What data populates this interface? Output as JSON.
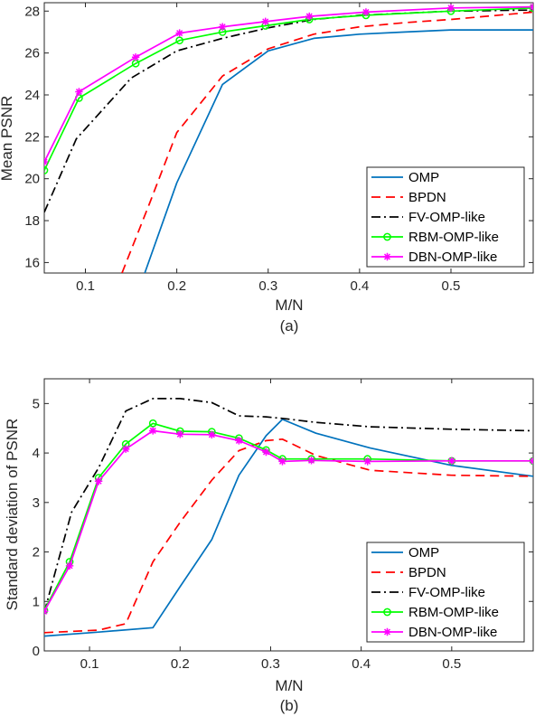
{
  "colors": {
    "OMP": "#0072BD",
    "BPDN": "#FF0000",
    "FV-OMP-like": "#000000",
    "RBM-OMP-like": "#00FF00",
    "DBN-OMP-like": "#FF00FF"
  },
  "chart_data": [
    {
      "type": "line",
      "panel_label": "(a)",
      "xlabel": "M/N",
      "ylabel": "Mean PSNR",
      "xlim": [
        0.055,
        0.59
      ],
      "ylim": [
        15.5,
        28.4
      ],
      "xticks": [
        0.1,
        0.2,
        0.3,
        0.4,
        0.5
      ],
      "xtick_labels": [
        "0.1",
        "0.2",
        "0.3",
        "0.4",
        "0.5"
      ],
      "yticks": [
        16,
        18,
        20,
        22,
        24,
        26,
        28
      ],
      "ytick_labels": [
        "16",
        "18",
        "20",
        "22",
        "24",
        "26",
        "28"
      ],
      "grid": false,
      "legend_position": "bottom-right",
      "series": [
        {
          "name": "OMP",
          "style": "solid",
          "marker": "none",
          "x": [
            0.165,
            0.2,
            0.25,
            0.3,
            0.35,
            0.4,
            0.45,
            0.5,
            0.59
          ],
          "y": [
            15.5,
            19.8,
            24.5,
            26.1,
            26.7,
            26.9,
            27.0,
            27.1,
            27.1
          ]
        },
        {
          "name": "BPDN",
          "style": "dashed",
          "marker": "none",
          "x": [
            0.14,
            0.17,
            0.2,
            0.25,
            0.3,
            0.35,
            0.4,
            0.45,
            0.5,
            0.59
          ],
          "y": [
            15.5,
            18.8,
            22.2,
            24.9,
            26.2,
            26.9,
            27.25,
            27.45,
            27.6,
            27.95
          ]
        },
        {
          "name": "FV-OMP-like",
          "style": "dashdot",
          "marker": "none",
          "x": [
            0.055,
            0.09,
            0.15,
            0.2,
            0.25,
            0.3,
            0.35,
            0.4,
            0.45,
            0.5,
            0.59
          ],
          "y": [
            18.4,
            21.9,
            24.8,
            26.1,
            26.7,
            27.2,
            27.6,
            27.8,
            27.9,
            28.0,
            28.05
          ]
        },
        {
          "name": "RBM-OMP-like",
          "style": "solid",
          "marker": "circle",
          "x": [
            0.055,
            0.093,
            0.155,
            0.203,
            0.25,
            0.297,
            0.345,
            0.407,
            0.5,
            0.59
          ],
          "y": [
            20.4,
            23.85,
            25.5,
            26.6,
            27.0,
            27.3,
            27.6,
            27.8,
            28.0,
            28.15
          ]
        },
        {
          "name": "DBN-OMP-like",
          "style": "solid",
          "marker": "asterisk",
          "x": [
            0.055,
            0.093,
            0.155,
            0.203,
            0.25,
            0.297,
            0.345,
            0.407,
            0.5,
            0.59
          ],
          "y": [
            20.8,
            24.15,
            25.8,
            26.95,
            27.25,
            27.5,
            27.75,
            27.95,
            28.15,
            28.2
          ]
        }
      ]
    },
    {
      "type": "line",
      "panel_label": "(b)",
      "xlabel": "M/N",
      "ylabel": "Standard deviation of PSNR",
      "xlim": [
        0.05,
        0.59
      ],
      "ylim": [
        0,
        5.5
      ],
      "xticks": [
        0.1,
        0.2,
        0.3,
        0.4,
        0.5
      ],
      "xtick_labels": [
        "0.1",
        "0.2",
        "0.3",
        "0.4",
        "0.5"
      ],
      "yticks": [
        0,
        1,
        2,
        3,
        4,
        5
      ],
      "ytick_labels": [
        "0",
        "1",
        "2",
        "3",
        "4",
        "5"
      ],
      "grid": false,
      "legend_position": "bottom-right",
      "series": [
        {
          "name": "OMP",
          "style": "solid",
          "marker": "none",
          "x": [
            0.05,
            0.11,
            0.17,
            0.2,
            0.235,
            0.265,
            0.295,
            0.313,
            0.35,
            0.41,
            0.5,
            0.59
          ],
          "y": [
            0.3,
            0.38,
            0.47,
            1.3,
            2.25,
            3.55,
            4.35,
            4.68,
            4.4,
            4.1,
            3.75,
            3.53
          ]
        },
        {
          "name": "BPDN",
          "style": "dashed",
          "marker": "none",
          "x": [
            0.05,
            0.11,
            0.14,
            0.17,
            0.2,
            0.235,
            0.265,
            0.295,
            0.313,
            0.35,
            0.41,
            0.5,
            0.59
          ],
          "y": [
            0.37,
            0.42,
            0.55,
            1.8,
            2.6,
            3.45,
            4.05,
            4.25,
            4.28,
            3.95,
            3.65,
            3.55,
            3.53
          ]
        },
        {
          "name": "FV-OMP-like",
          "style": "dashdot",
          "marker": "none",
          "x": [
            0.05,
            0.08,
            0.11,
            0.14,
            0.17,
            0.2,
            0.235,
            0.265,
            0.295,
            0.313,
            0.35,
            0.41,
            0.5,
            0.59
          ],
          "y": [
            0.78,
            2.8,
            3.7,
            4.85,
            5.1,
            5.1,
            5.02,
            4.75,
            4.73,
            4.7,
            4.62,
            4.53,
            4.48,
            4.45
          ]
        },
        {
          "name": "RBM-OMP-like",
          "style": "solid",
          "marker": "circle",
          "x": [
            0.05,
            0.078,
            0.11,
            0.14,
            0.17,
            0.2,
            0.235,
            0.265,
            0.295,
            0.313,
            0.345,
            0.407,
            0.5,
            0.59
          ],
          "y": [
            0.82,
            1.8,
            3.5,
            4.18,
            4.6,
            4.44,
            4.43,
            4.3,
            4.06,
            3.88,
            3.88,
            3.88,
            3.84,
            3.84
          ]
        },
        {
          "name": "DBN-OMP-like",
          "style": "solid",
          "marker": "asterisk",
          "x": [
            0.05,
            0.078,
            0.11,
            0.14,
            0.17,
            0.2,
            0.235,
            0.265,
            0.295,
            0.313,
            0.345,
            0.407,
            0.5,
            0.59
          ],
          "y": [
            0.8,
            1.72,
            3.43,
            4.08,
            4.45,
            4.38,
            4.37,
            4.25,
            4.02,
            3.83,
            3.85,
            3.83,
            3.84,
            3.84
          ]
        }
      ]
    }
  ]
}
